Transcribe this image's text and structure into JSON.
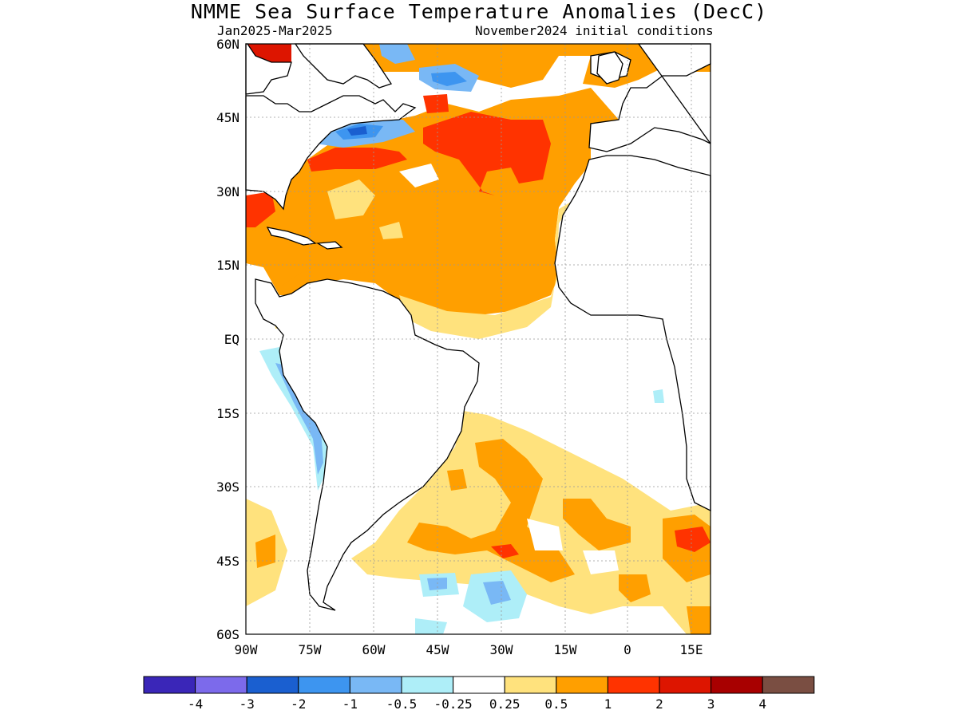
{
  "title": "NMME Sea Surface Temperature Anomalies (DecC)",
  "subtitle_left": "Jan2025-Mar2025",
  "subtitle_right": "November2024 initial conditions",
  "map": {
    "lat_labels": [
      "60N",
      "45N",
      "30N",
      "15N",
      "EQ",
      "15S",
      "30S",
      "45S",
      "60S"
    ],
    "lon_labels": [
      "90W",
      "75W",
      "60W",
      "45W",
      "30W",
      "15W",
      "0",
      "15E"
    ],
    "lat_range": [
      -60,
      60
    ],
    "lon_range": [
      -90,
      19
    ]
  },
  "colorbar": {
    "colors": [
      "#3a26b8",
      "#7c6aeb",
      "#1a5fd0",
      "#3d95f0",
      "#79b8f5",
      "#aeeef8",
      "#ffffff",
      "#ffe27d",
      "#ff9f00",
      "#ff3300",
      "#dd1500",
      "#a80000",
      "#7a4e42"
    ],
    "labels": [
      "-4",
      "-3",
      "-2",
      "-1",
      "-0.5",
      "-0.25",
      "0.25",
      "0.5",
      "1",
      "2",
      "3",
      "4"
    ]
  }
}
